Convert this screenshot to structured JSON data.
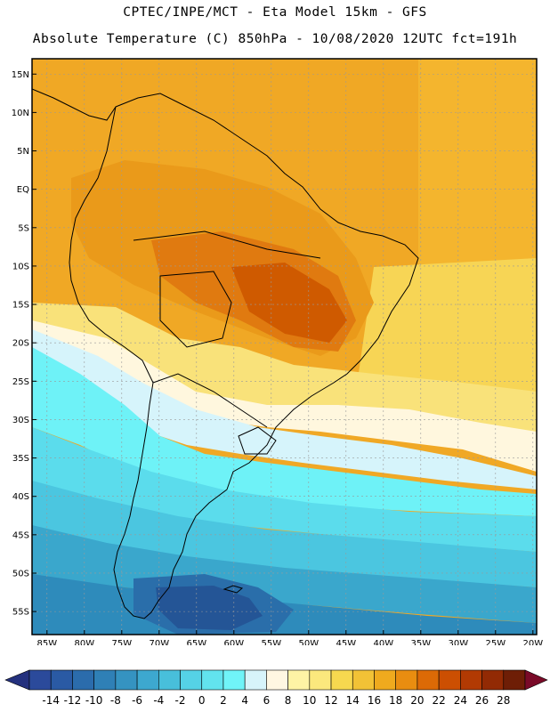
{
  "header": {
    "line1": "CPTEC/INPE/MCT -  Eta Model 15km - GFS",
    "line2": "Absolute Temperature (C) 850hPa - 10/08/2020 12UTC fct=191h"
  },
  "map": {
    "lat_labels": [
      "15N",
      "10N",
      "5N",
      "EQ",
      "5S",
      "10S",
      "15S",
      "20S",
      "25S",
      "30S",
      "35S",
      "40S",
      "45S",
      "50S",
      "55S"
    ],
    "lon_labels": [
      "85W",
      "80W",
      "75W",
      "70W",
      "65W",
      "60W",
      "55W",
      "50W",
      "45W",
      "40W",
      "35W",
      "30W",
      "25W",
      "20W"
    ],
    "lat_values": [
      15,
      10,
      5,
      0,
      -5,
      -10,
      -15,
      -20,
      -25,
      -30,
      -35,
      -40,
      -45,
      -50,
      -55
    ],
    "lon_values": [
      -85,
      -80,
      -75,
      -70,
      -65,
      -60,
      -55,
      -50,
      -45,
      -40,
      -35,
      -30,
      -25,
      -20
    ],
    "field_bands": [
      {
        "temp_min": 24,
        "color": "#cf5a00"
      },
      {
        "temp_min": 22,
        "color": "#e07a10"
      },
      {
        "temp_min": 20,
        "color": "#ea9a1a"
      },
      {
        "temp_min": 18,
        "color": "#f0a825"
      },
      {
        "temp_min": 16,
        "color": "#f4c33a"
      },
      {
        "temp_min": 14,
        "color": "#f7d555"
      },
      {
        "temp_min": 12,
        "color": "#f9e27a"
      },
      {
        "temp_min": 10,
        "color": "#fbeea0"
      },
      {
        "temp_min": 8,
        "color": "#fff7de"
      },
      {
        "temp_min": 6,
        "color": "#d6f4fb"
      },
      {
        "temp_min": 4,
        "color": "#6ef2f7"
      },
      {
        "temp_min": 2,
        "color": "#5bdcec"
      },
      {
        "temp_min": 0,
        "color": "#4bc6e0"
      },
      {
        "temp_min": -2,
        "color": "#3aa7cc"
      },
      {
        "temp_min": -4,
        "color": "#2e8bbb"
      },
      {
        "temp_min": -6,
        "color": "#2a6eaa"
      },
      {
        "temp_min": -8,
        "color": "#245596"
      }
    ]
  },
  "colorbar": {
    "labels": [
      "-14",
      "-12",
      "-10",
      "-8",
      "-6",
      "-4",
      "-2",
      "0",
      "2",
      "4",
      "6",
      "8",
      "10",
      "12",
      "14",
      "16",
      "18",
      "20",
      "22",
      "24",
      "26",
      "28"
    ],
    "colors": [
      "#2b4a9b",
      "#2a5aa4",
      "#2b6cac",
      "#2f80b6",
      "#3593c1",
      "#3da8cf",
      "#48bfdb",
      "#55d2e6",
      "#62e3ee",
      "#70f4f8",
      "#d7f4fa",
      "#fff7e2",
      "#fef3a5",
      "#fbe87d",
      "#f7d84f",
      "#f2c236",
      "#efaa1e",
      "#e98d10",
      "#dc6a06",
      "#cc4f02",
      "#b23a03",
      "#922a04",
      "#6e1e06"
    ],
    "under_color": "#24317e",
    "over_color": "#7a0a28"
  }
}
